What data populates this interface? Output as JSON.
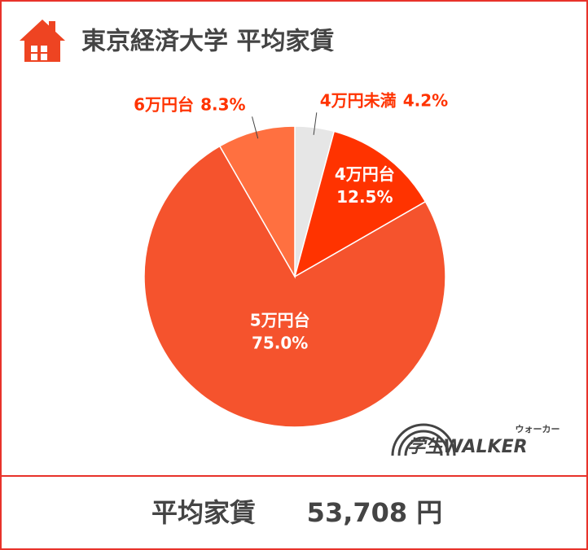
{
  "chart_data": {
    "type": "pie",
    "title": "東京経済大学 平均家賃",
    "categories": [
      "4万円未満",
      "4万円台",
      "5万円台",
      "6万円台"
    ],
    "values": [
      4.2,
      12.5,
      75.0,
      8.3
    ],
    "value_labels": [
      "4.2%",
      "12.5%",
      "75.0%",
      "8.3%"
    ],
    "colors": [
      "#e6e6e6",
      "#ff3300",
      "#f5532d",
      "#ff7040"
    ],
    "footer_label": "平均家賃",
    "footer_value": "53,708 円",
    "logo": "学生WALKER",
    "logo_ruby": "ウォーカー"
  }
}
